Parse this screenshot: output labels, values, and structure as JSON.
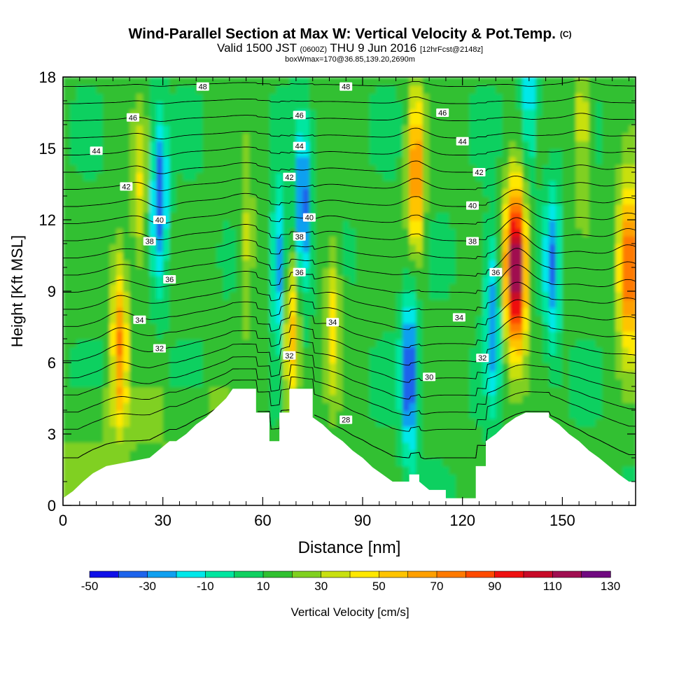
{
  "title": {
    "main": "Wind-Parallel Section at Max W: Vertical Velocity & Pot.Temp.",
    "mark": "(C)",
    "valid_a": "Valid 1500 JST",
    "valid_zulu": "(0600Z)",
    "valid_b": "THU 9 Jun 2016",
    "forecast": "[12hrFcst@2148z]",
    "box": "boxWmax=170@36.85,139.20,2690m"
  },
  "chart_data": {
    "type": "heatmap",
    "xlabel": "Distance [nm]",
    "ylabel": "Height [Kft MSL]",
    "xlim": [
      0,
      172
    ],
    "ylim": [
      0,
      18
    ],
    "x_ticks": [
      0,
      30,
      60,
      90,
      120,
      150
    ],
    "y_ticks": [
      0,
      3,
      6,
      9,
      12,
      15,
      18
    ],
    "colorbar": {
      "label": "Vertical Velocity [cm/s]",
      "tick_labels": [
        -50,
        -30,
        -10,
        10,
        30,
        50,
        70,
        90,
        110,
        130
      ],
      "levels": [
        -50,
        -40,
        -30,
        -20,
        -10,
        0,
        10,
        20,
        30,
        40,
        50,
        60,
        70,
        80,
        90,
        100,
        110,
        120,
        130
      ],
      "colors": [
        "#1010e8",
        "#1e64ec",
        "#10a0f0",
        "#00e8ea",
        "#00e6a0",
        "#10d060",
        "#30c030",
        "#80d020",
        "#c8e010",
        "#ffe800",
        "#ffc400",
        "#ffa000",
        "#ff7a00",
        "#ff4a00",
        "#ef1010",
        "#c80a28",
        "#a00e50",
        "#700a80"
      ]
    },
    "updraft_cores": [
      {
        "x": 17,
        "z": 7,
        "w": 70
      },
      {
        "x": 23,
        "z": 13,
        "w": 40
      },
      {
        "x": 55,
        "z": 11,
        "w": 35
      },
      {
        "x": 68.5,
        "z": 7,
        "w": 60
      },
      {
        "x": 81,
        "z": 8,
        "w": 45
      },
      {
        "x": 106,
        "z": 14,
        "w": 75
      },
      {
        "x": 136,
        "z": 10,
        "w": 130
      },
      {
        "x": 156,
        "z": 16,
        "w": 40
      },
      {
        "x": 170,
        "z": 10,
        "w": 90
      }
    ],
    "downdraft_cores": [
      {
        "x": 29,
        "z": 13,
        "w": -40
      },
      {
        "x": 72,
        "z": 12.5,
        "w": -40
      },
      {
        "x": 65,
        "z": 10,
        "w": -30
      },
      {
        "x": 104,
        "z": 5.5,
        "w": -45
      },
      {
        "x": 129,
        "z": 8,
        "w": -30
      },
      {
        "x": 147,
        "z": 10,
        "w": -30
      },
      {
        "x": 140,
        "z": 17,
        "w": -20
      }
    ],
    "theta_contours": {
      "levels": [
        28,
        29,
        30,
        31,
        32,
        33,
        34,
        35,
        36,
        37,
        38,
        39,
        40,
        41,
        42,
        43,
        44,
        45,
        46,
        47,
        48
      ],
      "labels": [
        {
          "text": "48",
          "x": 42,
          "z": 17.6
        },
        {
          "text": "48",
          "x": 85,
          "z": 17.6
        },
        {
          "text": "46",
          "x": 21,
          "z": 16.3
        },
        {
          "text": "46",
          "x": 71,
          "z": 16.4
        },
        {
          "text": "46",
          "x": 114,
          "z": 16.5
        },
        {
          "text": "44",
          "x": 10,
          "z": 14.9
        },
        {
          "text": "44",
          "x": 71,
          "z": 15.1
        },
        {
          "text": "44",
          "x": 120,
          "z": 15.3
        },
        {
          "text": "42",
          "x": 19,
          "z": 13.4
        },
        {
          "text": "42",
          "x": 68,
          "z": 13.8
        },
        {
          "text": "42",
          "x": 125,
          "z": 14.0
        },
        {
          "text": "40",
          "x": 29,
          "z": 12.0
        },
        {
          "text": "40",
          "x": 74,
          "z": 12.1
        },
        {
          "text": "40",
          "x": 123,
          "z": 12.6
        },
        {
          "text": "38",
          "x": 26,
          "z": 11.1
        },
        {
          "text": "38",
          "x": 71,
          "z": 11.3
        },
        {
          "text": "38",
          "x": 123,
          "z": 11.1
        },
        {
          "text": "36",
          "x": 32,
          "z": 9.5
        },
        {
          "text": "36",
          "x": 71,
          "z": 9.8
        },
        {
          "text": "36",
          "x": 130,
          "z": 9.8
        },
        {
          "text": "34",
          "x": 23,
          "z": 7.8
        },
        {
          "text": "34",
          "x": 81,
          "z": 7.7
        },
        {
          "text": "34",
          "x": 119,
          "z": 7.9
        },
        {
          "text": "32",
          "x": 29,
          "z": 6.6
        },
        {
          "text": "32",
          "x": 68,
          "z": 6.3
        },
        {
          "text": "32",
          "x": 126,
          "z": 6.2
        },
        {
          "text": "30",
          "x": 110,
          "z": 5.4
        },
        {
          "text": "28",
          "x": 85,
          "z": 3.6
        }
      ]
    },
    "terrain_kft": [
      [
        0,
        0.3
      ],
      [
        3,
        0.6
      ],
      [
        6,
        1.0
      ],
      [
        9,
        1.35
      ],
      [
        13,
        1.65
      ],
      [
        26,
        2.0
      ],
      [
        29,
        2.35
      ],
      [
        32,
        2.7
      ],
      [
        34,
        2.7
      ],
      [
        37,
        3.0
      ],
      [
        40,
        3.4
      ],
      [
        43,
        3.7
      ],
      [
        46,
        4.1
      ],
      [
        49,
        4.5
      ],
      [
        51,
        4.9
      ],
      [
        58,
        4.9
      ],
      [
        58,
        3.9
      ],
      [
        62,
        3.9
      ],
      [
        62,
        2.7
      ],
      [
        65,
        2.7
      ],
      [
        65,
        3.9
      ],
      [
        68,
        3.9
      ],
      [
        68,
        4.9
      ],
      [
        75,
        4.9
      ],
      [
        75,
        3.7
      ],
      [
        78,
        3.4
      ],
      [
        81,
        3.0
      ],
      [
        84,
        2.7
      ],
      [
        87,
        2.3
      ],
      [
        90,
        2.0
      ],
      [
        93,
        1.6
      ],
      [
        96,
        1.3
      ],
      [
        99,
        1.0
      ],
      [
        104,
        1.0
      ],
      [
        104,
        1.3
      ],
      [
        107,
        1.3
      ],
      [
        107,
        1.0
      ],
      [
        110,
        0.65
      ],
      [
        115,
        0.65
      ],
      [
        115,
        0.3
      ],
      [
        124,
        0.3
      ],
      [
        124,
        1.65
      ],
      [
        127,
        1.65
      ],
      [
        127,
        2.7
      ],
      [
        130,
        3.0
      ],
      [
        133,
        3.4
      ],
      [
        136,
        3.7
      ],
      [
        139,
        3.9
      ],
      [
        146,
        3.9
      ],
      [
        146,
        3.7
      ],
      [
        149,
        3.4
      ],
      [
        152,
        3.0
      ],
      [
        155,
        2.7
      ],
      [
        158,
        2.3
      ],
      [
        161,
        2.0
      ],
      [
        164,
        1.65
      ],
      [
        167,
        1.3
      ],
      [
        170,
        1.0
      ],
      [
        172,
        1.0
      ]
    ]
  }
}
